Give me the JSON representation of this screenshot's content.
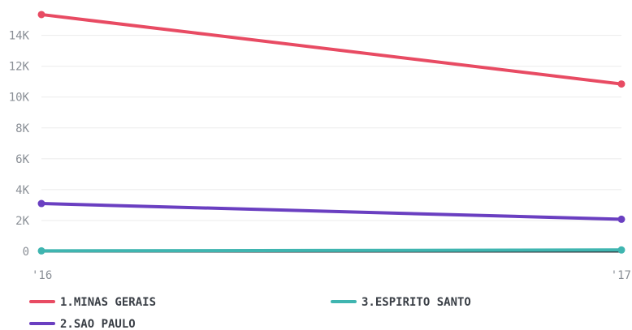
{
  "chart_data": {
    "type": "line",
    "title": "",
    "xlabel": "",
    "ylabel": "",
    "x": [
      "'16",
      "'17"
    ],
    "y_ticks": [
      "0",
      "2K",
      "4K",
      "6K",
      "8K",
      "10K",
      "12K",
      "14K"
    ],
    "y_tick_values": [
      0,
      2000,
      4000,
      6000,
      8000,
      10000,
      12000,
      14000
    ],
    "ylim": [
      0,
      15400
    ],
    "grid": true,
    "legend_position": "bottom",
    "series": [
      {
        "name": "1.MINAS GERAIS",
        "color": "#e84b63",
        "values": [
          15350,
          10850
        ]
      },
      {
        "name": "2.SAO PAULO",
        "color": "#6a3fc1",
        "values": [
          3100,
          2080
        ]
      },
      {
        "name": "3.ESPIRITO SANTO",
        "color": "#3fb5b0",
        "values": [
          30,
          90
        ]
      }
    ]
  }
}
